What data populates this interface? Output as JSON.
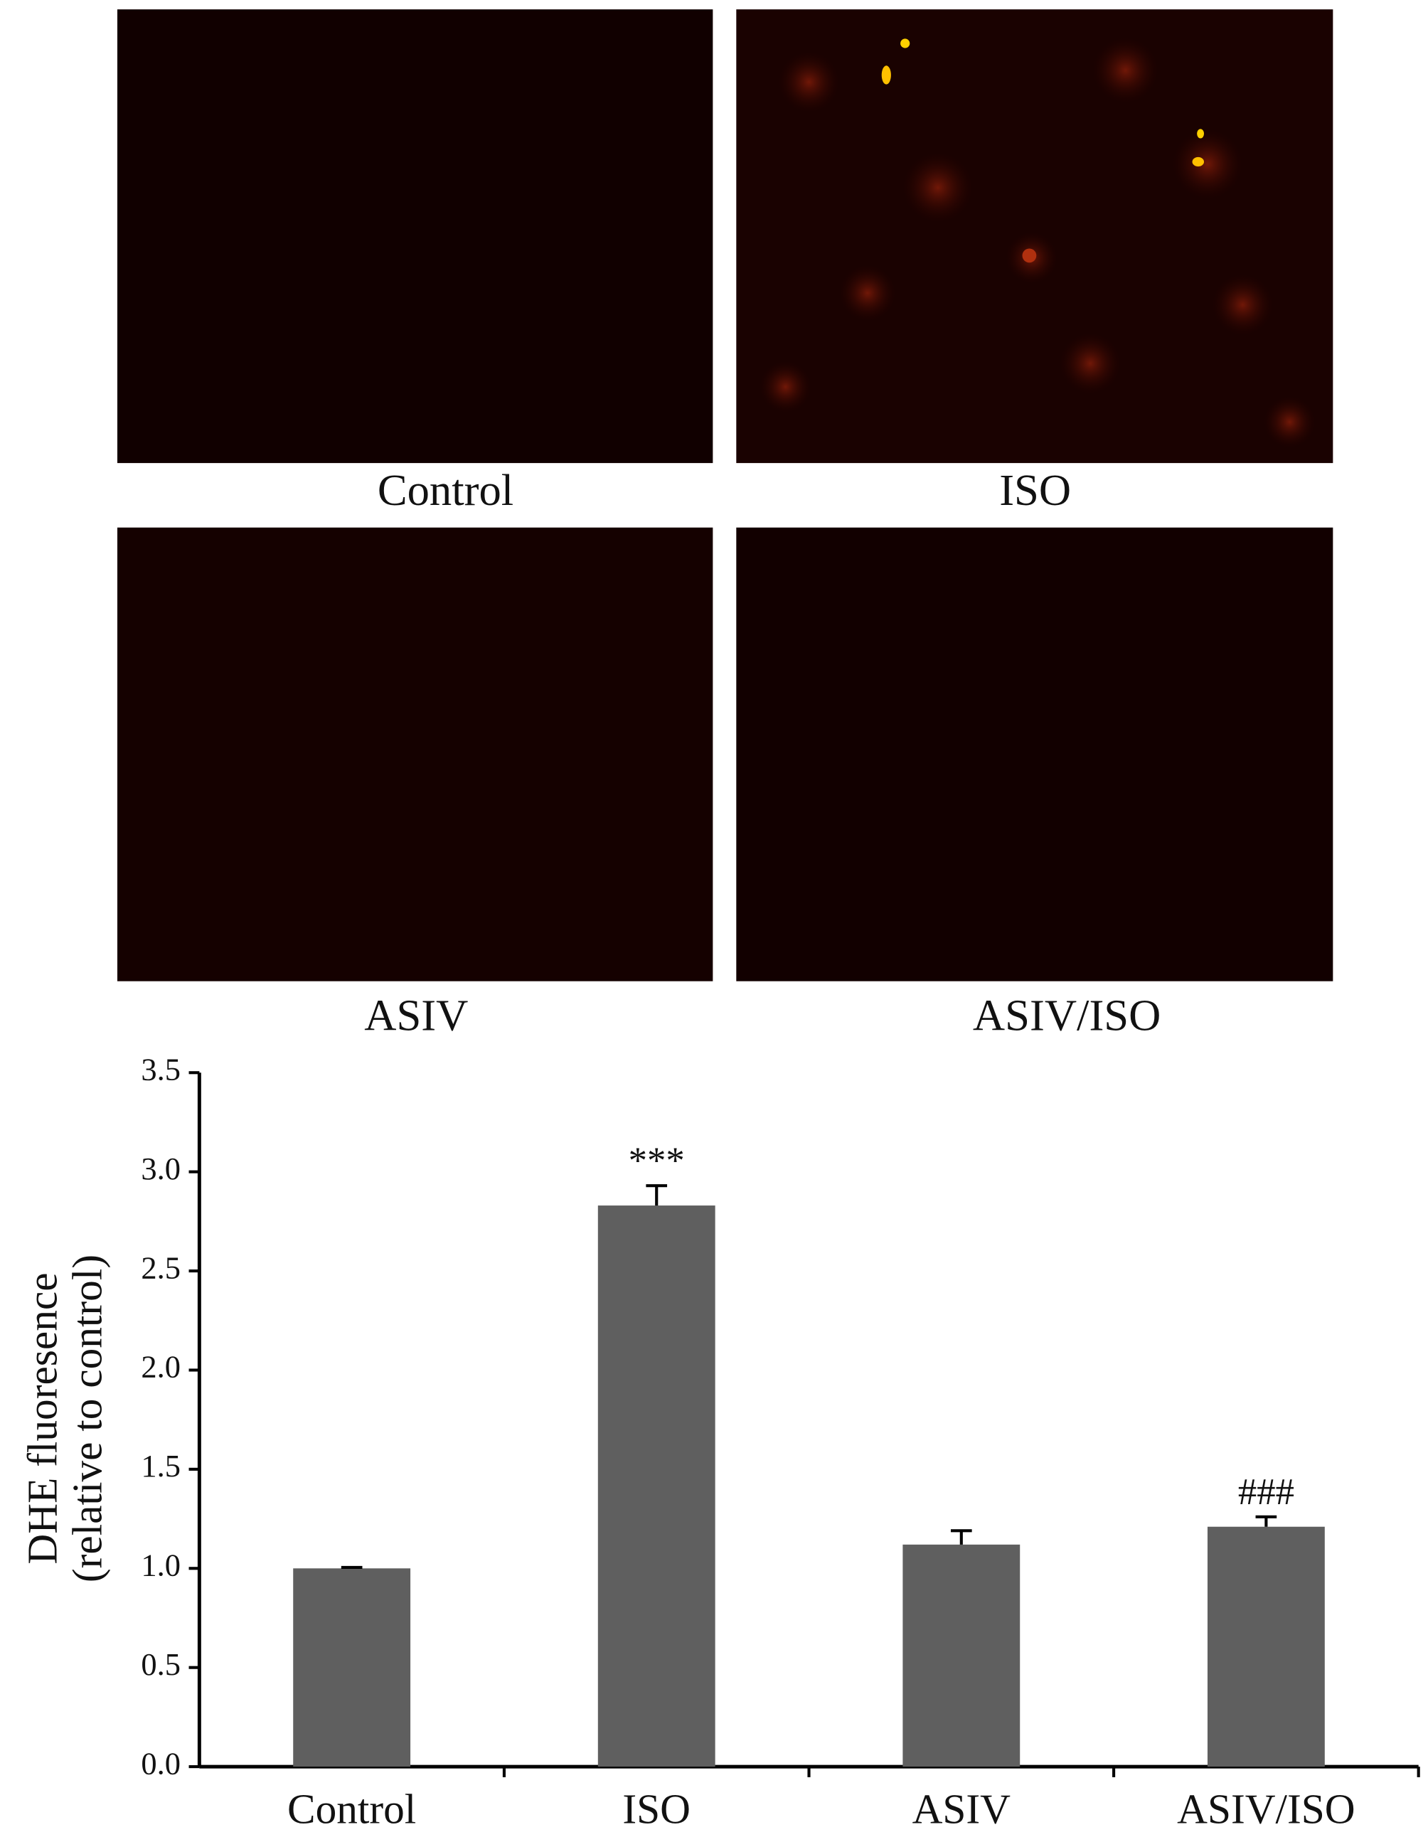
{
  "image_panels": [
    {
      "label": "Control"
    },
    {
      "label": "ISO"
    },
    {
      "label": "ASIV"
    },
    {
      "label": "ASIV/ISO"
    }
  ],
  "chart_data": {
    "type": "bar",
    "ylabel": [
      "DHE fluoresence",
      "(relative to control)"
    ],
    "categories": [
      "Control",
      "ISO",
      "ASIV",
      "ASIV/ISO"
    ],
    "values": [
      1.0,
      2.83,
      1.12,
      1.21
    ],
    "errors": [
      0.005,
      0.1,
      0.07,
      0.05
    ],
    "annotations": [
      null,
      "***",
      null,
      "###"
    ],
    "color": "#5f5f5f",
    "ylim": [
      0,
      3.5
    ],
    "yticks": [
      {
        "value": 0,
        "label": "0.0"
      },
      0.5,
      {
        "value": 1,
        "label": "1.0"
      },
      1.5,
      {
        "value": 2,
        "label": "2.0"
      },
      2.5,
      {
        "value": 3,
        "label": "3.0"
      },
      3.5
    ],
    "grid": false
  }
}
